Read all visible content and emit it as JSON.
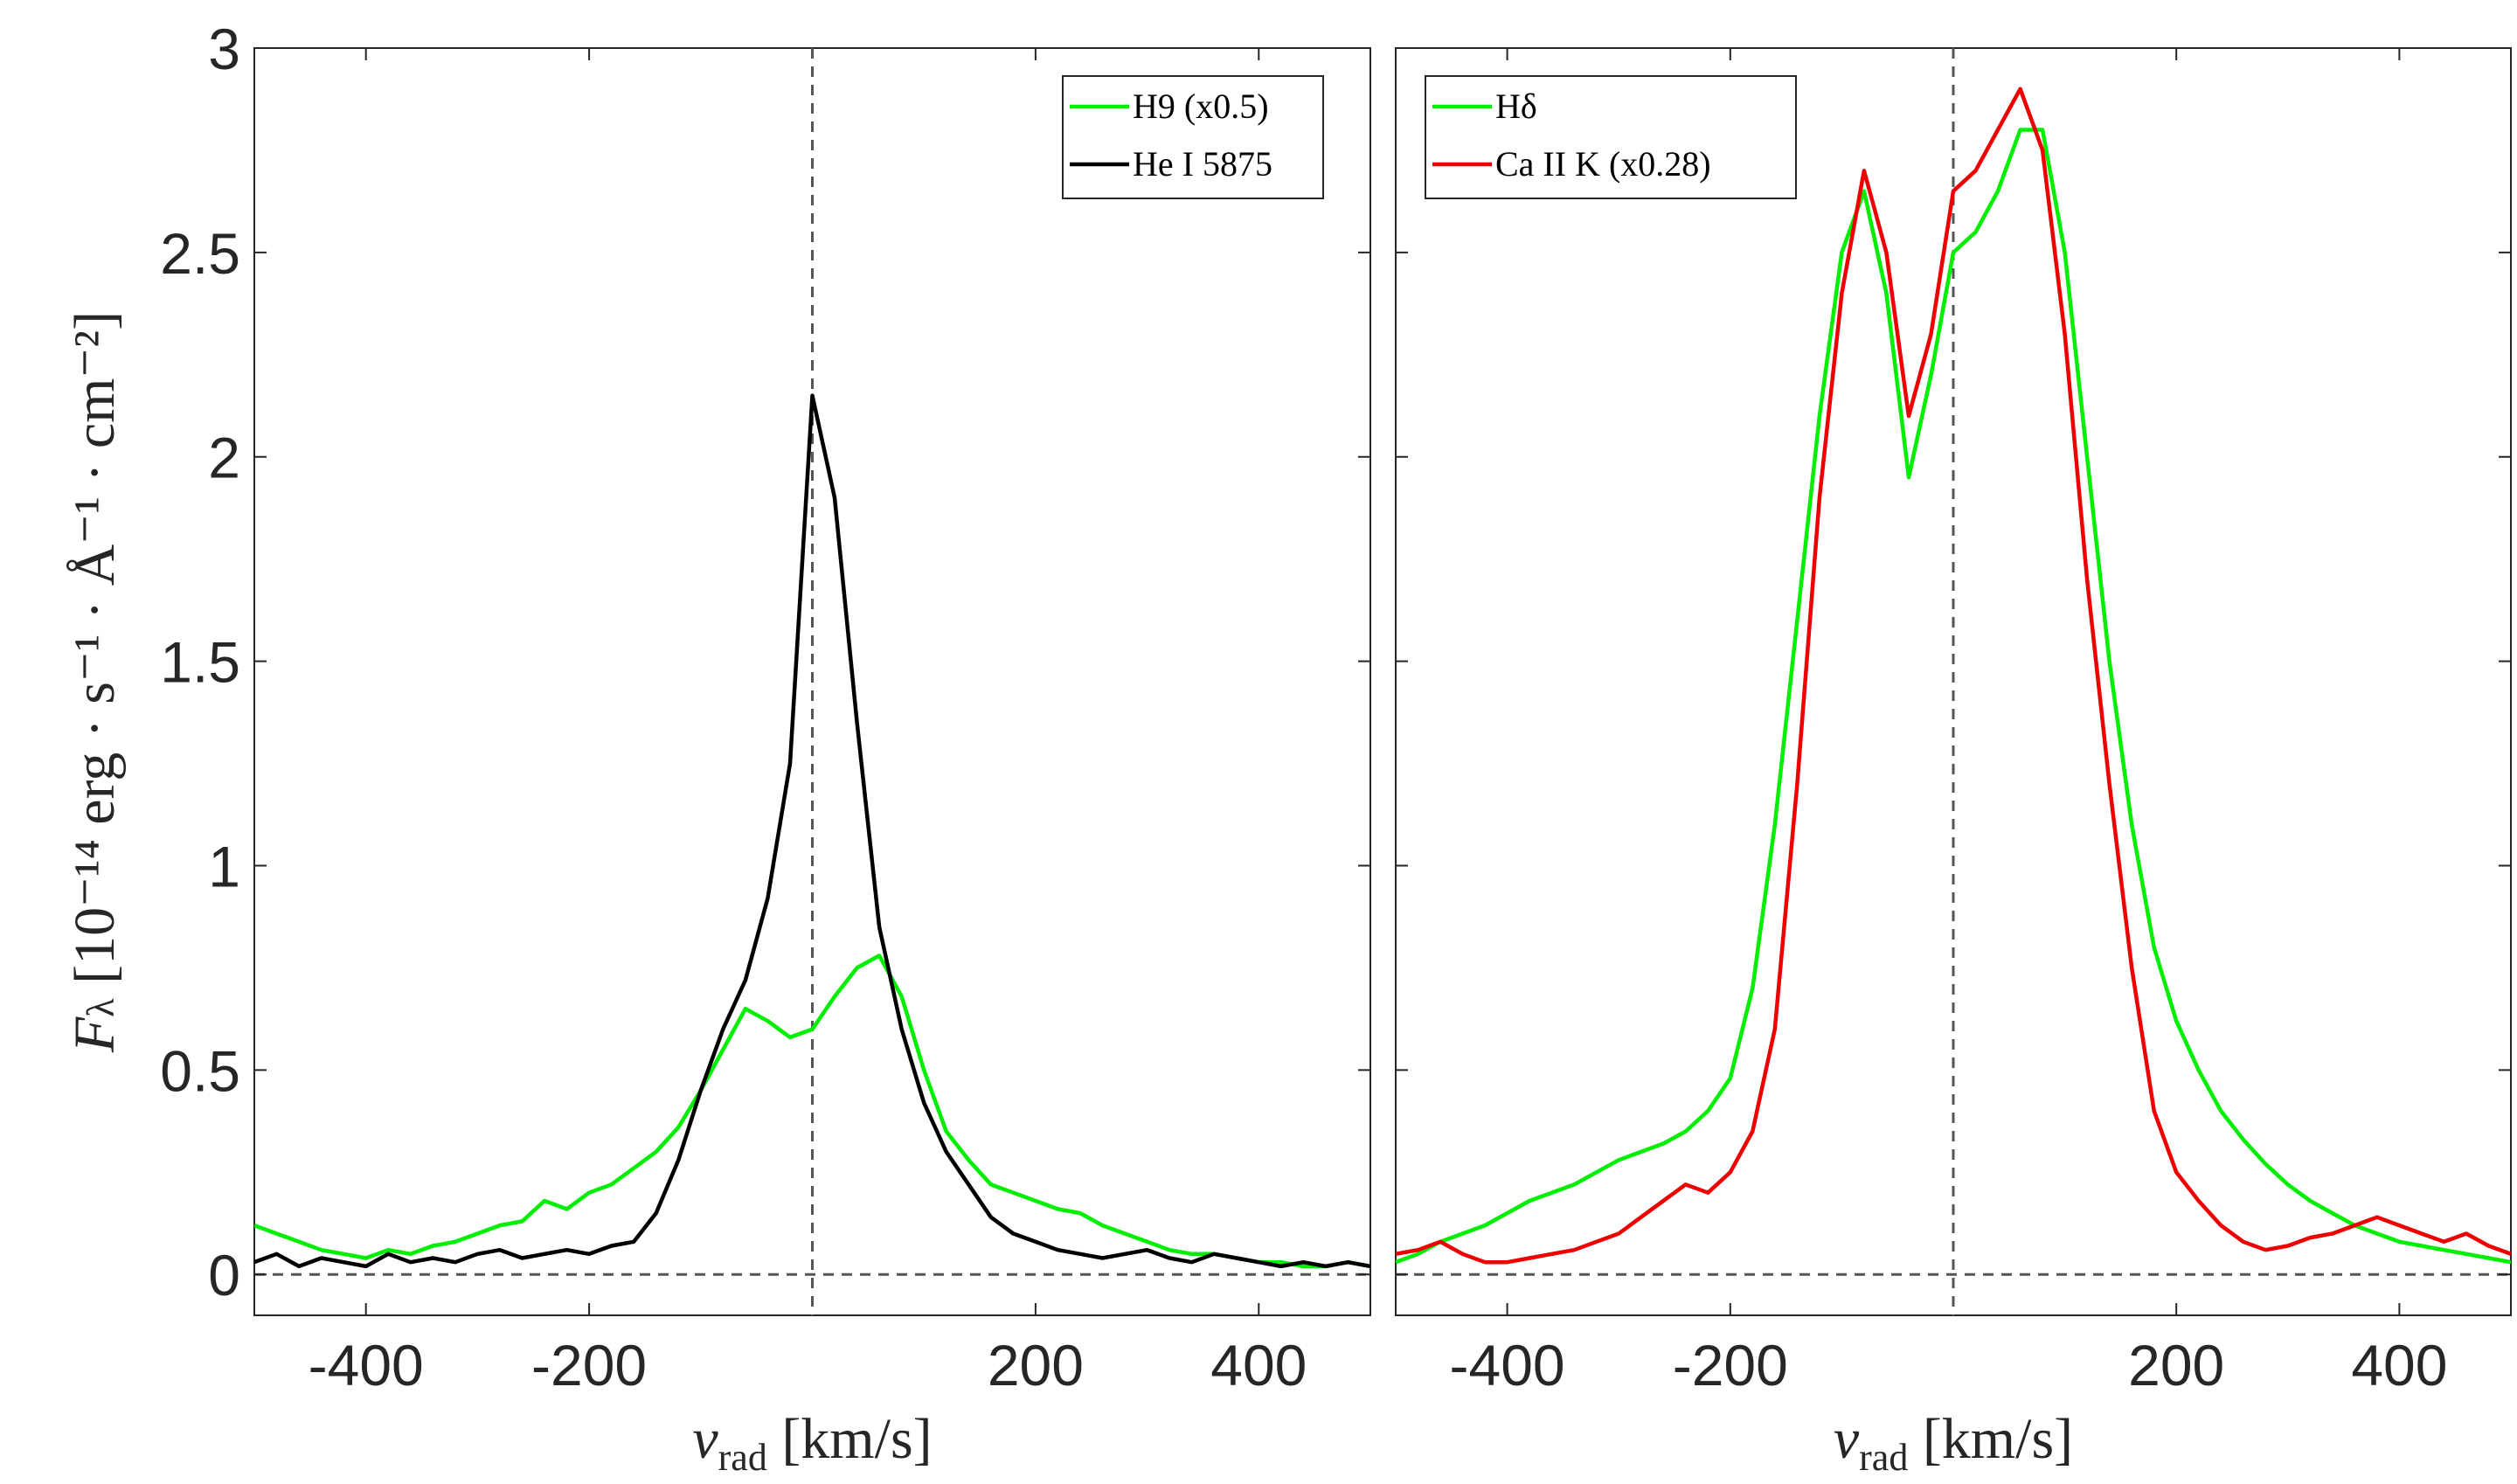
{
  "chart_data": [
    {
      "type": "line",
      "xlabel": {
        "main": "v",
        "sub": "rad",
        "rest": " [km/s]"
      },
      "ylabel": {
        "main": "F",
        "sub": "λ",
        "rest": " [10⁻¹⁴ erg · s⁻¹ · Å⁻¹ · cm⁻²]"
      },
      "x": [
        -500,
        -480,
        -460,
        -440,
        -420,
        -400,
        -380,
        -360,
        -340,
        -320,
        -300,
        -280,
        -260,
        -240,
        -220,
        -200,
        -180,
        -160,
        -140,
        -120,
        -100,
        -80,
        -60,
        -40,
        -20,
        0,
        20,
        40,
        60,
        80,
        100,
        120,
        140,
        160,
        180,
        200,
        220,
        240,
        260,
        280,
        300,
        320,
        340,
        360,
        380,
        400,
        420,
        440,
        460,
        480,
        500
      ],
      "series": [
        {
          "name": "H9 (x0.5)",
          "color": "#00ee00",
          "values": [
            0.12,
            0.1,
            0.08,
            0.06,
            0.05,
            0.04,
            0.06,
            0.05,
            0.07,
            0.08,
            0.1,
            0.12,
            0.13,
            0.18,
            0.16,
            0.2,
            0.22,
            0.26,
            0.3,
            0.36,
            0.45,
            0.55,
            0.65,
            0.62,
            0.58,
            0.6,
            0.68,
            0.75,
            0.78,
            0.68,
            0.5,
            0.35,
            0.28,
            0.22,
            0.2,
            0.18,
            0.16,
            0.15,
            0.12,
            0.1,
            0.08,
            0.06,
            0.05,
            0.05,
            0.04,
            0.03,
            0.03,
            0.02,
            0.02,
            0.03,
            0.02
          ]
        },
        {
          "name": "He I 5875",
          "color": "#000000",
          "values": [
            0.03,
            0.05,
            0.02,
            0.04,
            0.03,
            0.02,
            0.05,
            0.03,
            0.04,
            0.03,
            0.05,
            0.06,
            0.04,
            0.05,
            0.06,
            0.05,
            0.07,
            0.08,
            0.15,
            0.28,
            0.45,
            0.6,
            0.72,
            0.92,
            1.25,
            2.15,
            1.9,
            1.35,
            0.85,
            0.6,
            0.42,
            0.3,
            0.22,
            0.14,
            0.1,
            0.08,
            0.06,
            0.05,
            0.04,
            0.05,
            0.06,
            0.04,
            0.03,
            0.05,
            0.04,
            0.03,
            0.02,
            0.03,
            0.02,
            0.03,
            0.02
          ]
        }
      ],
      "xlim": [
        -500,
        500
      ],
      "ylim": [
        -0.1,
        3
      ],
      "xticks": [
        -400,
        -200,
        200,
        400
      ],
      "yticks": [
        0,
        0.5,
        1,
        1.5,
        2,
        2.5,
        3
      ],
      "legend": "upper right"
    },
    {
      "type": "line",
      "xlabel": {
        "main": "v",
        "sub": "rad",
        "rest": " [km/s]"
      },
      "x": [
        -500,
        -480,
        -460,
        -440,
        -420,
        -400,
        -380,
        -360,
        -340,
        -320,
        -300,
        -280,
        -260,
        -240,
        -220,
        -200,
        -180,
        -160,
        -140,
        -120,
        -100,
        -80,
        -60,
        -40,
        -20,
        0,
        20,
        40,
        60,
        80,
        100,
        120,
        140,
        160,
        180,
        200,
        220,
        240,
        260,
        280,
        300,
        320,
        340,
        360,
        380,
        400,
        420,
        440,
        460,
        480,
        500
      ],
      "series": [
        {
          "name": "Hδ",
          "color": "#00ee00",
          "values": [
            0.03,
            0.05,
            0.08,
            0.1,
            0.12,
            0.15,
            0.18,
            0.2,
            0.22,
            0.25,
            0.28,
            0.3,
            0.32,
            0.35,
            0.4,
            0.48,
            0.7,
            1.1,
            1.6,
            2.1,
            2.5,
            2.65,
            2.4,
            1.95,
            2.2,
            2.5,
            2.55,
            2.65,
            2.8,
            2.8,
            2.5,
            2.0,
            1.5,
            1.1,
            0.8,
            0.62,
            0.5,
            0.4,
            0.33,
            0.27,
            0.22,
            0.18,
            0.15,
            0.12,
            0.1,
            0.08,
            0.07,
            0.06,
            0.05,
            0.04,
            0.03
          ]
        },
        {
          "name": "Ca II K (x0.28)",
          "color": "#ee0000",
          "values": [
            0.05,
            0.06,
            0.08,
            0.05,
            0.03,
            0.03,
            0.04,
            0.05,
            0.06,
            0.08,
            0.1,
            0.14,
            0.18,
            0.22,
            0.2,
            0.25,
            0.35,
            0.6,
            1.2,
            1.9,
            2.4,
            2.7,
            2.5,
            2.1,
            2.3,
            2.65,
            2.7,
            2.8,
            2.9,
            2.75,
            2.3,
            1.7,
            1.2,
            0.75,
            0.4,
            0.25,
            0.18,
            0.12,
            0.08,
            0.06,
            0.07,
            0.09,
            0.1,
            0.12,
            0.14,
            0.12,
            0.1,
            0.08,
            0.1,
            0.07,
            0.05
          ]
        }
      ],
      "xlim": [
        -500,
        500
      ],
      "ylim": [
        -0.1,
        3
      ],
      "xticks": [
        -400,
        -200,
        200,
        400
      ],
      "legend": "upper left"
    }
  ]
}
